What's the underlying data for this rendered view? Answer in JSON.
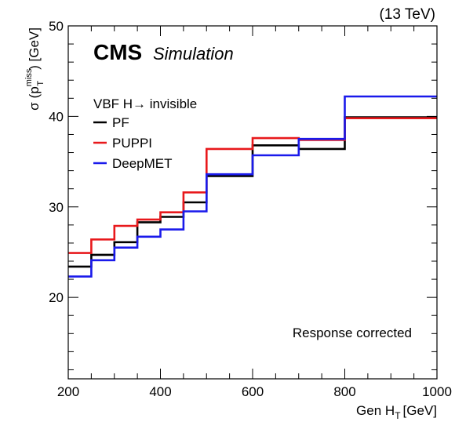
{
  "chart_data": {
    "type": "line",
    "header_right": "(13 TeV)",
    "experiment": "CMS",
    "experiment_note": "Simulation",
    "legend_title": "VBF H→ invisible",
    "legend_placement": "top-left",
    "annotation": "Response corrected",
    "xlabel_base": "Gen H",
    "xlabel_sub": "T",
    "xlabel_unit": "[GeV]",
    "ylabel_sigma": "σ",
    "ylabel_open": "(p",
    "ylabel_sup": "miss",
    "ylabel_sub": "T",
    "ylabel_close": ") [GeV]",
    "xlim": [
      200,
      1000
    ],
    "ylim": [
      11,
      50
    ],
    "x_ticks": [
      200,
      400,
      600,
      800,
      1000
    ],
    "x_tick_labels": [
      "200",
      "400",
      "600",
      "800",
      "1000"
    ],
    "y_ticks": [
      20,
      30,
      40,
      50
    ],
    "y_tick_labels": [
      "20",
      "30",
      "40",
      "50"
    ],
    "bin_edges": [
      200,
      250,
      300,
      350,
      400,
      450,
      500,
      600,
      700,
      800,
      1000
    ],
    "grid": false,
    "series": [
      {
        "name": "PF",
        "color": "#000000",
        "values": [
          23.4,
          24.7,
          26.1,
          28.3,
          28.9,
          30.5,
          33.4,
          36.8,
          36.4,
          39.9
        ]
      },
      {
        "name": "PUPPI",
        "color": "#e8191c",
        "values": [
          24.9,
          26.4,
          27.9,
          28.6,
          29.4,
          31.6,
          36.4,
          37.6,
          37.4,
          39.8
        ]
      },
      {
        "name": "DeepMET",
        "color": "#1a1aeb",
        "values": [
          22.3,
          24.1,
          25.5,
          26.7,
          27.5,
          29.5,
          33.6,
          35.7,
          37.5,
          42.2
        ]
      }
    ]
  }
}
